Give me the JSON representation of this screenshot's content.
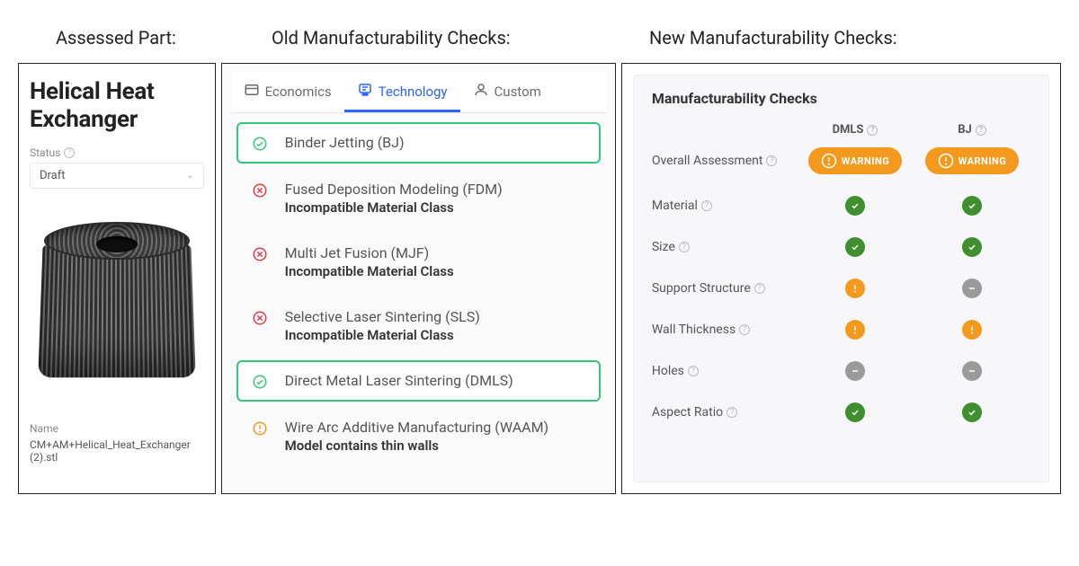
{
  "headings": {
    "assessed": "Assessed Part:",
    "old": "Old Manufacturability Checks:",
    "new": "New Manufacturability Checks:"
  },
  "part_panel": {
    "title_line1": "Helical Heat",
    "title_line2": "Exchanger",
    "status_label": "Status",
    "status_value": "Draft",
    "name_label": "Name",
    "file_name": "CM+AM+Helical_Heat_Exchanger (2).stl"
  },
  "old_panel": {
    "tabs": [
      {
        "label": "Economics",
        "active": false,
        "icon": "economics"
      },
      {
        "label": "Technology",
        "active": true,
        "icon": "technology"
      },
      {
        "label": "Custom",
        "active": false,
        "icon": "custom"
      }
    ],
    "technologies": [
      {
        "status": "ok",
        "name": "Binder Jetting (BJ)",
        "reason": ""
      },
      {
        "status": "fail",
        "name": "Fused Deposition Modeling (FDM)",
        "reason": "Incompatible Material Class"
      },
      {
        "status": "fail",
        "name": "Multi Jet Fusion (MJF)",
        "reason": "Incompatible Material Class"
      },
      {
        "status": "fail",
        "name": "Selective Laser Sintering (SLS)",
        "reason": "Incompatible Material Class"
      },
      {
        "status": "ok",
        "name": "Direct Metal Laser Sintering (DMLS)",
        "reason": ""
      },
      {
        "status": "warn",
        "name": "Wire Arc Additive Manufacturing (WAAM)",
        "reason": "Model contains thin walls"
      }
    ]
  },
  "new_panel": {
    "title": "Manufacturability Checks",
    "columns": [
      "DMLS",
      "BJ"
    ],
    "overall_label": "Overall Assessment",
    "overall": [
      "WARNING",
      "WARNING"
    ],
    "rows": [
      {
        "label": "Material",
        "vals": [
          "ok",
          "ok"
        ]
      },
      {
        "label": "Size",
        "vals": [
          "ok",
          "ok"
        ]
      },
      {
        "label": "Support Structure",
        "vals": [
          "warn",
          "na"
        ]
      },
      {
        "label": "Wall Thickness",
        "vals": [
          "warn",
          "warn"
        ]
      },
      {
        "label": "Holes",
        "vals": [
          "na",
          "na"
        ]
      },
      {
        "label": "Aspect Ratio",
        "vals": [
          "ok",
          "ok"
        ]
      }
    ]
  },
  "colors": {
    "ok": "#3f8f2f",
    "fail": "#e53a4a",
    "warn": "#f39a1e",
    "na": "#9a9a9a",
    "accent": "#2962ff",
    "ok_border": "#34c77b"
  }
}
